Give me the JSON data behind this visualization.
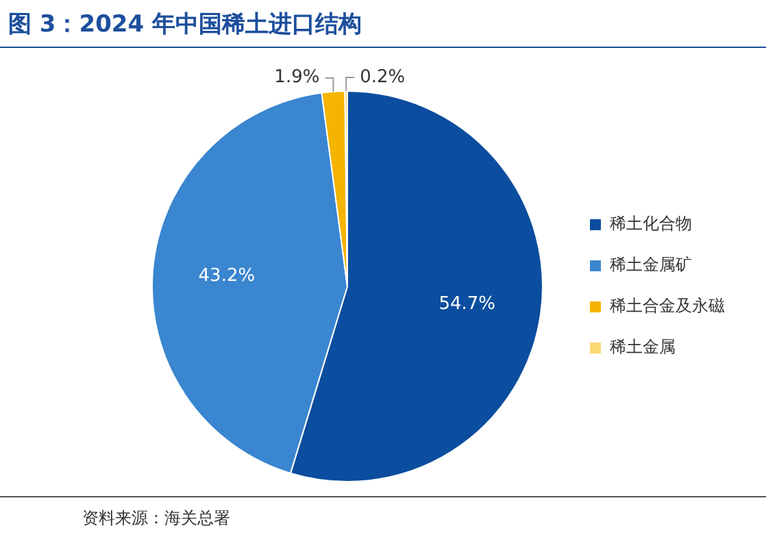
{
  "chart_data": {
    "type": "pie",
    "title": "图 3：2024 年中国稀土进口结构",
    "categories": [
      "稀土化合物",
      "稀土金属矿",
      "稀土合金及永磁",
      "稀土金属"
    ],
    "values": [
      54.7,
      43.2,
      1.9,
      0.2
    ],
    "colors": [
      "#0b4d9e",
      "#3a86d0",
      "#f4b400",
      "#fbd872"
    ],
    "value_labels": [
      "54.7%",
      "43.2%",
      "1.9%",
      "0.2%"
    ],
    "legend": "right",
    "annotations": [
      "资料来源：海关总署"
    ]
  }
}
